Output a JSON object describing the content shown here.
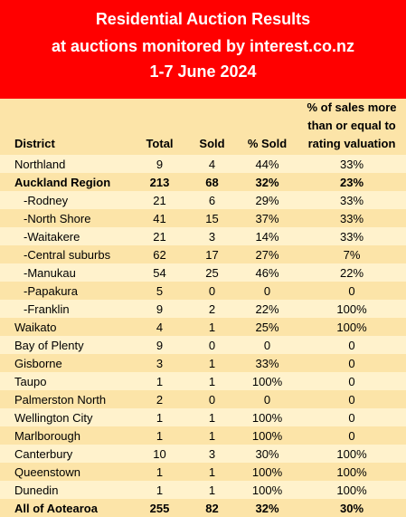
{
  "title": {
    "line1": "Residential Auction Results",
    "line2": "at auctions monitored by interest.co.nz",
    "line3": "1-7 June 2024"
  },
  "columns": {
    "district": "District",
    "total": "Total",
    "sold": "Sold",
    "pct_sold": "% Sold",
    "pct_over": "% of sales more than or equal to rating valuation"
  },
  "rows": [
    {
      "district": "Northland",
      "total": "9",
      "sold": "4",
      "pct_sold": "44%",
      "pct_over": "33%"
    },
    {
      "district": "Auckland Region",
      "total": "213",
      "sold": "68",
      "pct_sold": "32%",
      "pct_over": "23%"
    },
    {
      "district": "-Rodney",
      "total": "21",
      "sold": "6",
      "pct_sold": "29%",
      "pct_over": "33%"
    },
    {
      "district": "-North Shore",
      "total": "41",
      "sold": "15",
      "pct_sold": "37%",
      "pct_over": "33%"
    },
    {
      "district": "-Waitakere",
      "total": "21",
      "sold": "3",
      "pct_sold": "14%",
      "pct_over": "33%"
    },
    {
      "district": "-Central suburbs",
      "total": "62",
      "sold": "17",
      "pct_sold": "27%",
      "pct_over": "7%"
    },
    {
      "district": "-Manukau",
      "total": "54",
      "sold": "25",
      "pct_sold": "46%",
      "pct_over": "22%"
    },
    {
      "district": "-Papakura",
      "total": "5",
      "sold": "0",
      "pct_sold": "0",
      "pct_over": "0"
    },
    {
      "district": "-Franklin",
      "total": "9",
      "sold": "2",
      "pct_sold": "22%",
      "pct_over": "100%"
    },
    {
      "district": "Waikato",
      "total": "4",
      "sold": "1",
      "pct_sold": "25%",
      "pct_over": "100%"
    },
    {
      "district": "Bay of Plenty",
      "total": "9",
      "sold": "0",
      "pct_sold": "0",
      "pct_over": "0"
    },
    {
      "district": "Gisborne",
      "total": "3",
      "sold": "1",
      "pct_sold": "33%",
      "pct_over": "0"
    },
    {
      "district": "Taupo",
      "total": "1",
      "sold": "1",
      "pct_sold": "100%",
      "pct_over": "0"
    },
    {
      "district": "Palmerston North",
      "total": "2",
      "sold": "0",
      "pct_sold": "0",
      "pct_over": "0"
    },
    {
      "district": "Wellington City",
      "total": "1",
      "sold": "1",
      "pct_sold": "100%",
      "pct_over": "0"
    },
    {
      "district": "Marlborough",
      "total": "1",
      "sold": "1",
      "pct_sold": "100%",
      "pct_over": "0"
    },
    {
      "district": "Canterbury",
      "total": "10",
      "sold": "3",
      "pct_sold": "30%",
      "pct_over": "100%"
    },
    {
      "district": "Queenstown",
      "total": "1",
      "sold": "1",
      "pct_sold": "100%",
      "pct_over": "100%"
    },
    {
      "district": "Dunedin",
      "total": "1",
      "sold": "1",
      "pct_sold": "100%",
      "pct_over": "100%"
    }
  ],
  "total_row": {
    "district": "All of Aotearoa",
    "total": "255",
    "sold": "82",
    "pct_sold": "32%",
    "pct_over": "30%"
  },
  "colors": {
    "header_bg": "#ff0000",
    "header_text": "#ffffff",
    "row_light": "#fff2cc",
    "row_dark": "#fce4a8"
  }
}
